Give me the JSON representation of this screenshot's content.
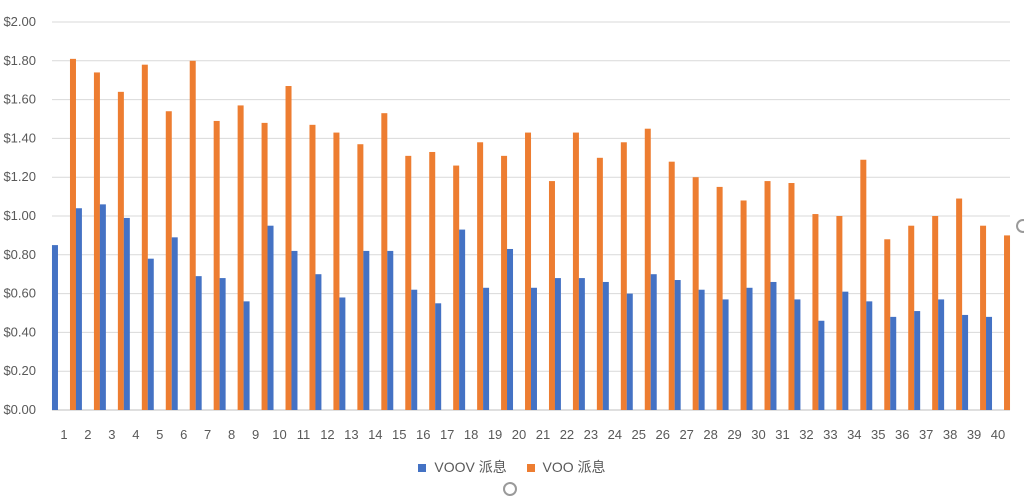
{
  "colors": {
    "voov": "#4472C4",
    "voo": "#ED7D31",
    "grid": "#d9d9d9",
    "text": "#595959"
  },
  "chart_data": {
    "type": "bar",
    "title": "",
    "xlabel": "",
    "ylabel": "",
    "ylim": [
      0,
      2.0
    ],
    "ytick_labels": [
      "$0.00",
      "$0.20",
      "$0.40",
      "$0.60",
      "$0.80",
      "$1.00",
      "$1.20",
      "$1.40",
      "$1.60",
      "$1.80",
      "$2.00"
    ],
    "categories": [
      "1",
      "2",
      "3",
      "4",
      "5",
      "6",
      "7",
      "8",
      "9",
      "10",
      "11",
      "12",
      "13",
      "14",
      "15",
      "16",
      "17",
      "18",
      "19",
      "20",
      "21",
      "22",
      "23",
      "24",
      "25",
      "26",
      "27",
      "28",
      "29",
      "30",
      "31",
      "32",
      "33",
      "34",
      "35",
      "36",
      "37",
      "38",
      "39",
      "40"
    ],
    "series": [
      {
        "name": "VOOV 派息",
        "values": [
          0.85,
          1.04,
          1.06,
          0.99,
          0.78,
          0.89,
          0.69,
          0.68,
          0.56,
          0.95,
          0.82,
          0.7,
          0.58,
          0.82,
          0.82,
          0.62,
          0.55,
          0.93,
          0.63,
          0.83,
          0.63,
          0.68,
          0.68,
          0.66,
          0.6,
          0.7,
          0.67,
          0.62,
          0.57,
          0.63,
          0.66,
          0.57,
          0.46,
          0.61,
          0.56,
          0.48,
          0.51,
          0.57,
          0.49,
          0.48
        ]
      },
      {
        "name": "VOO 派息",
        "values": [
          1.81,
          1.74,
          1.64,
          1.78,
          1.54,
          1.8,
          1.49,
          1.57,
          1.48,
          1.67,
          1.47,
          1.43,
          1.37,
          1.53,
          1.31,
          1.33,
          1.26,
          1.38,
          1.31,
          1.43,
          1.18,
          1.43,
          1.3,
          1.38,
          1.45,
          1.28,
          1.2,
          1.15,
          1.08,
          1.18,
          1.17,
          1.01,
          1.0,
          1.29,
          0.88,
          0.95,
          1.0,
          1.09,
          0.95,
          0.9
        ]
      }
    ],
    "grid": true,
    "legend_position": "bottom"
  }
}
